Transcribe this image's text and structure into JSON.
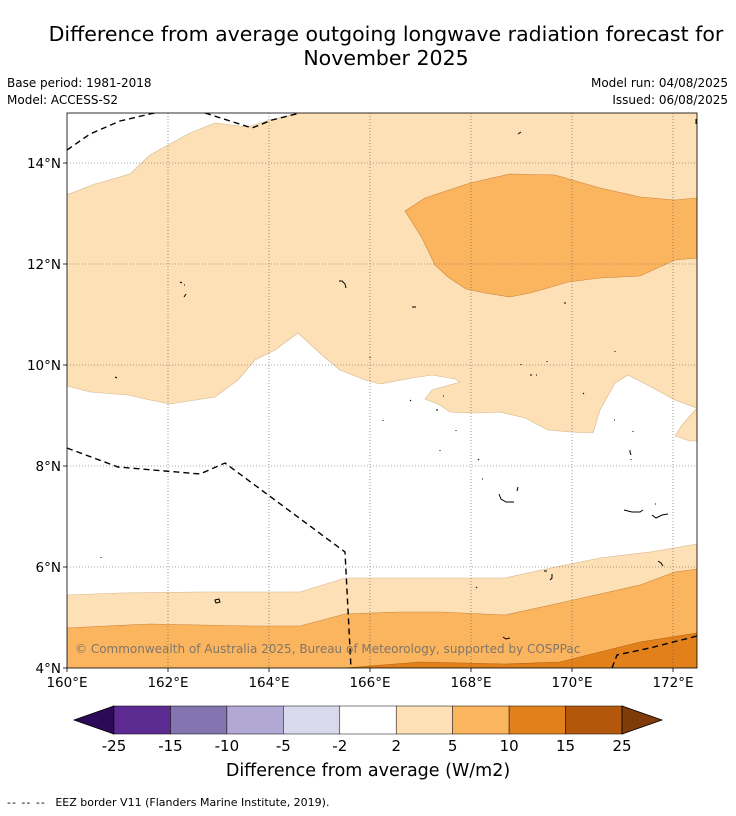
{
  "title_line1": "Difference from average outgoing longwave radiation forecast for",
  "title_line2": "November 2025",
  "base_period": "Base period: 1981-2018",
  "model": "Model: ACCESS-S2",
  "model_run": "Model run: 04/08/2025",
  "issued": "Issued: 06/08/2025",
  "copyright": "© Commonwealth of Australia 2025, Bureau of Meteorology, supported by COSPPac",
  "map": {
    "lon_range": [
      160,
      172.5
    ],
    "lat_range": [
      4,
      15
    ],
    "lon_ticks": [
      "160°E",
      "162°E",
      "164°E",
      "166°E",
      "168°E",
      "170°E",
      "172°E"
    ],
    "lat_ticks": [
      "4°N",
      "6°N",
      "8°N",
      "10°N",
      "12°N",
      "14°N"
    ],
    "grid": true
  },
  "colorbar": {
    "labels": [
      "-25",
      "-15",
      "-10",
      "-5",
      "-2",
      "2",
      "5",
      "10",
      "15",
      "25"
    ],
    "colors": [
      "#2d0a55",
      "#5c2a91",
      "#8474b0",
      "#b1a9d4",
      "#d9d9ec",
      "#ffffff",
      "#fde0b6",
      "#fbb55f",
      "#e2811c",
      "#b3570d",
      "#7f3b08"
    ],
    "title": "Difference from average (W/m2)"
  },
  "footer": {
    "dash": "-- -- --",
    "text": "EEZ border V11 (Flanders Marine Institute, 2019)."
  }
}
